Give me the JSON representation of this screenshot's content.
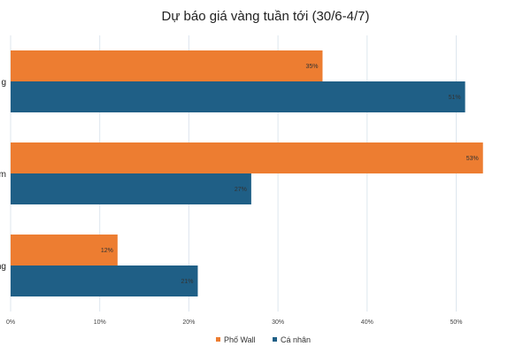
{
  "chart_data": {
    "type": "bar",
    "orientation": "horizontal",
    "title": "Dự báo giá vàng tuần tới (30/6-4/7)",
    "categories": [
      "Tăng",
      "Giảm",
      "Đi ngang"
    ],
    "categories_visible_text": [
      "g",
      "m",
      "ng"
    ],
    "series": [
      {
        "name": "Phố Wall",
        "color": "#ed7d31",
        "values": [
          35,
          53,
          12
        ]
      },
      {
        "name": "Cá nhân",
        "color": "#1f5f86",
        "values": [
          51,
          27,
          21
        ]
      }
    ],
    "xlim": [
      0,
      57
    ],
    "xticks": [
      0,
      10,
      20,
      30,
      40,
      50
    ],
    "tick_suffix": "%",
    "data_label_suffix": "%",
    "grid": true,
    "legend": "bottom-center"
  }
}
